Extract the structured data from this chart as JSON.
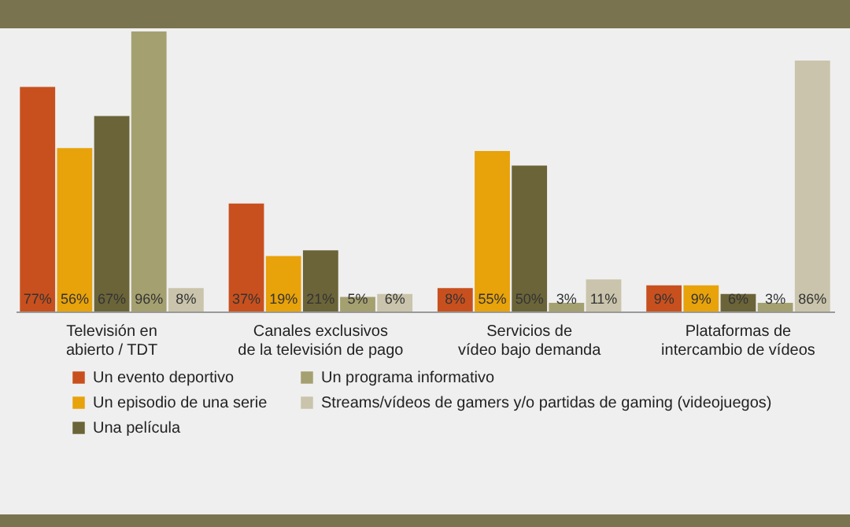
{
  "chart_data": {
    "type": "bar",
    "categories": [
      "Televisión en\nabierto / TDT",
      "Canales exclusivos\nde la televisión de pago",
      "Servicios de\nvídeo bajo demanda",
      "Plataformas de\nintercambio de vídeos"
    ],
    "series": [
      {
        "name": "Un evento deportivo",
        "color": "#c8501e",
        "values": [
          77,
          37,
          8,
          9
        ],
        "value_labels": [
          "77%",
          "37%",
          "8%",
          "9%"
        ]
      },
      {
        "name": "Un episodio de una serie",
        "color": "#e8a20a",
        "values": [
          56,
          19,
          55,
          9
        ],
        "value_labels": [
          "56%",
          "19%",
          "55%",
          "9%"
        ]
      },
      {
        "name": "Una película",
        "color": "#6b6439",
        "values": [
          67,
          21,
          50,
          6
        ],
        "value_labels": [
          "67%",
          "21%",
          "50%",
          "6%"
        ]
      },
      {
        "name": "Un programa informativo",
        "color": "#a5a070",
        "values": [
          96,
          5,
          3,
          3
        ],
        "value_labels": [
          "96%",
          "5%",
          "3%",
          "3%"
        ]
      },
      {
        "name": "Streams/vídeos de gamers y/o partidas de gaming (videojuegos)",
        "color": "#c9c4ab",
        "values": [
          8,
          6,
          11,
          86
        ],
        "value_labels": [
          "8%",
          "6%",
          "11%",
          "86%"
        ]
      }
    ],
    "legend": "bottom left"
  }
}
